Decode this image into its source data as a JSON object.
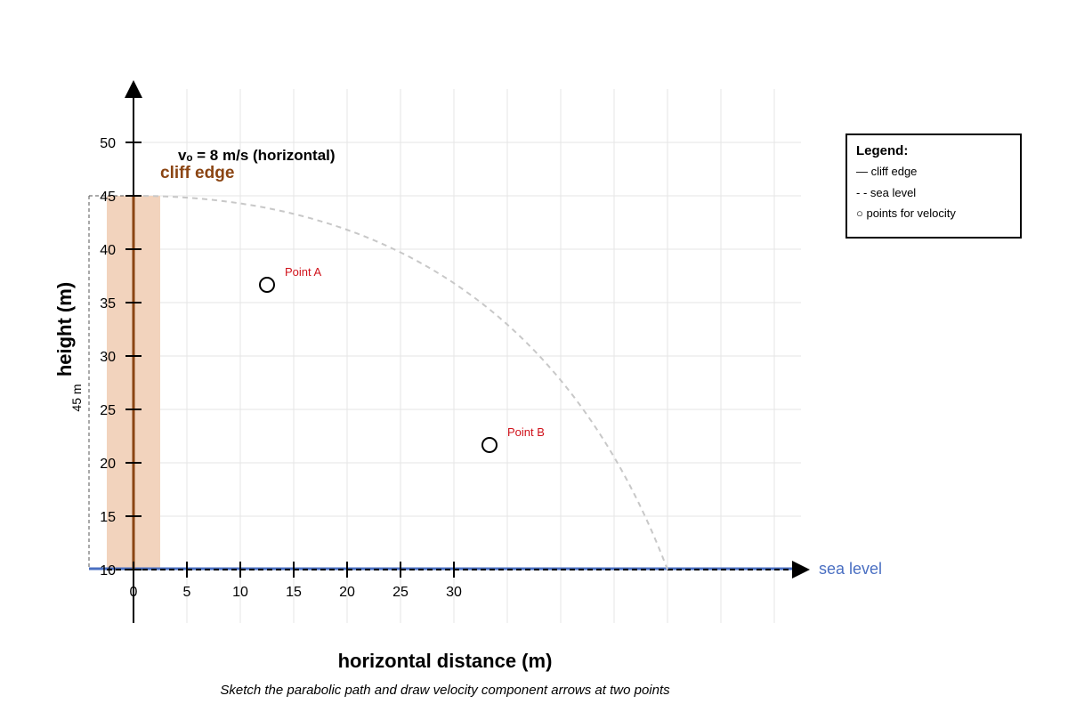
{
  "diagram": {
    "velocity_label": "vₒ = 8 m/s (horizontal)",
    "cliff_label": "cliff edge",
    "sea_level_label": "sea level",
    "height_marker_label": "45 m",
    "point_a_label": "Point A",
    "point_b_label": "Point B",
    "xlabel": "horizontal distance (m)",
    "ylabel": "height (m)",
    "caption": "Sketch the parabolic path and draw velocity component arrows at two points",
    "x_ticks": [
      0,
      5,
      10,
      15,
      20,
      25,
      30
    ],
    "y_ticks": [
      10,
      15,
      20,
      25,
      30,
      35,
      40,
      45,
      50
    ],
    "colors": {
      "cliff": "#8b4513",
      "cliff_fill": "#f2d3bd",
      "sea": "#4a6fc2",
      "point_label": "#d0121b",
      "grid": "#e6e6e6",
      "path": "#c8c8c8"
    }
  },
  "legend": {
    "title": "Legend:",
    "items": [
      "— cliff edge",
      "- - sea level",
      "○ points for velocity"
    ]
  }
}
